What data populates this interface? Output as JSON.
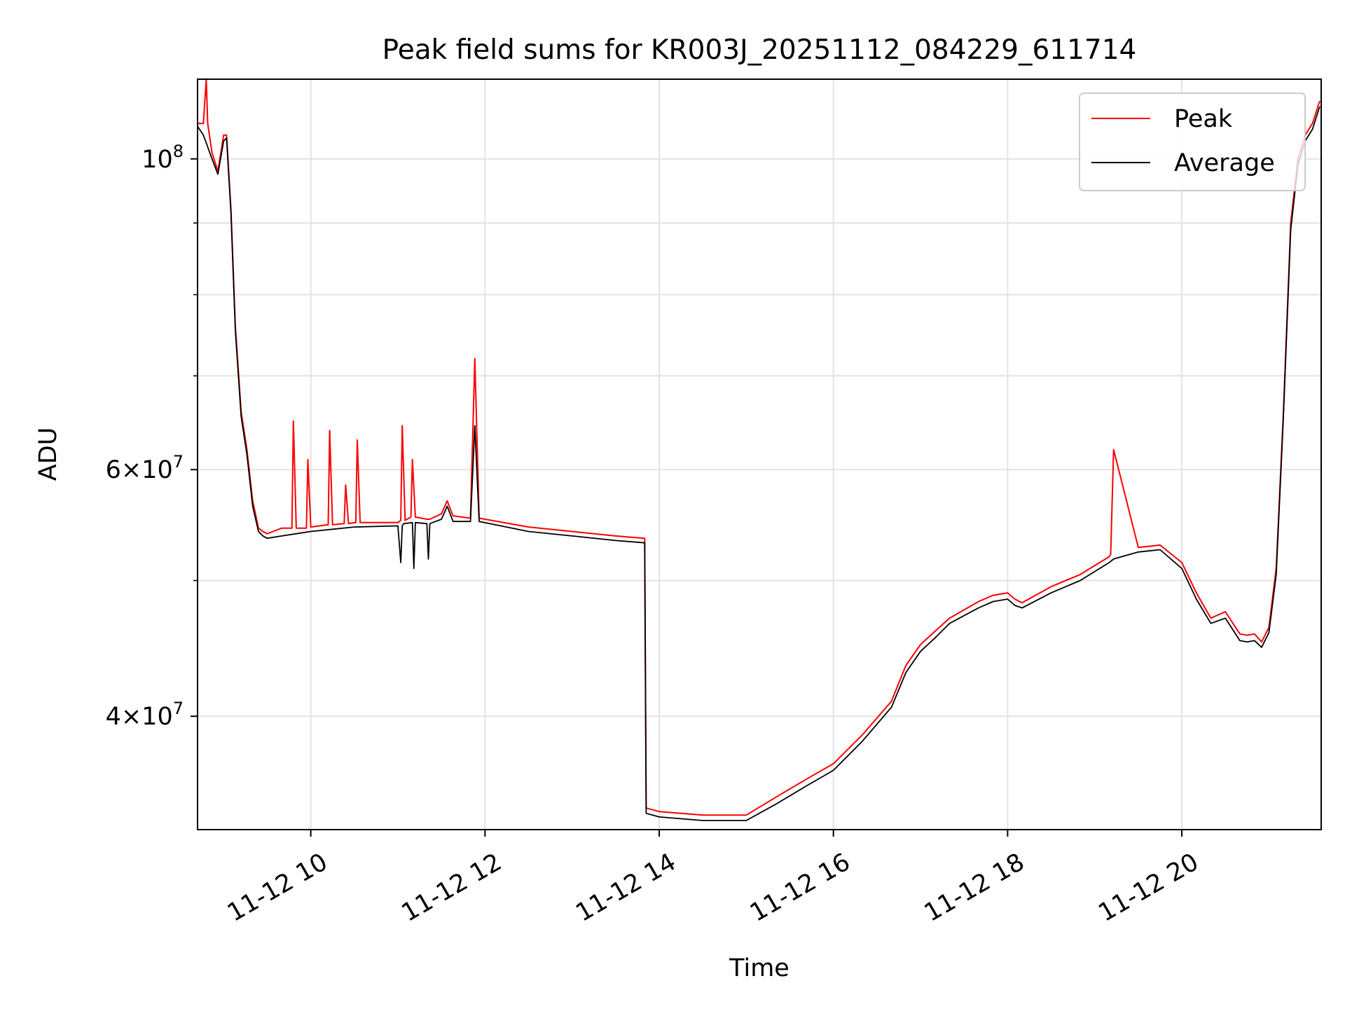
{
  "chart_data": {
    "type": "line",
    "title": "Peak field sums for KR003J_20251112_084229_611714",
    "xlabel": "Time",
    "ylabel": "ADU",
    "yscale": "log",
    "grid": true,
    "legend_position": "upper right",
    "xlim": [
      "2025-11-12 08:42",
      "2025-11-12 21:36"
    ],
    "ylim": [
      33200000,
      114000000
    ],
    "x_ticks": [
      "2025-11-12 10:00",
      "2025-11-12 12:00",
      "2025-11-12 14:00",
      "2025-11-12 16:00",
      "2025-11-12 18:00",
      "2025-11-12 20:00"
    ],
    "x_tick_labels": [
      "11-12 10",
      "11-12 12",
      "11-12 14",
      "11-12 16",
      "11-12 18",
      "11-12 20"
    ],
    "y_ticks": [
      40000000,
      60000000,
      100000000
    ],
    "y_tick_labels": [
      {
        "base": "4",
        "exp": "7"
      },
      {
        "base": "6",
        "exp": "7"
      },
      {
        "base": "10",
        "exp": "8"
      }
    ],
    "y_minor_ticks": [
      50000000,
      70000000,
      80000000,
      90000000
    ],
    "series": [
      {
        "name": "Peak",
        "color": "#ff0000",
        "x": [
          "2025-11-12 08:42",
          "2025-11-12 08:46",
          "2025-11-12 08:48",
          "2025-11-12 08:49",
          "2025-11-12 08:52",
          "2025-11-12 08:56",
          "2025-11-12 09:00",
          "2025-11-12 09:02",
          "2025-11-12 09:05",
          "2025-11-12 09:08",
          "2025-11-12 09:12",
          "2025-11-12 09:16",
          "2025-11-12 09:20",
          "2025-11-12 09:24",
          "2025-11-12 09:27",
          "2025-11-12 09:30",
          "2025-11-12 09:34",
          "2025-11-12 09:40",
          "2025-11-12 09:47",
          "2025-11-12 09:48",
          "2025-11-12 09:50",
          "2025-11-12 09:57",
          "2025-11-12 09:58",
          "2025-11-12 10:00",
          "2025-11-12 10:12",
          "2025-11-12 10:13",
          "2025-11-12 10:15",
          "2025-11-12 10:23",
          "2025-11-12 10:24",
          "2025-11-12 10:26",
          "2025-11-12 10:31",
          "2025-11-12 10:32",
          "2025-11-12 10:34",
          "2025-11-12 11:00",
          "2025-11-12 11:02",
          "2025-11-12 11:03",
          "2025-11-12 11:05",
          "2025-11-12 11:09",
          "2025-11-12 11:10",
          "2025-11-12 11:12",
          "2025-11-12 11:20",
          "2025-11-12 11:22",
          "2025-11-12 11:30",
          "2025-11-12 11:34",
          "2025-11-12 11:38",
          "2025-11-12 11:50",
          "2025-11-12 11:53",
          "2025-11-12 11:56",
          "2025-11-12 12:30",
          "2025-11-12 13:00",
          "2025-11-12 13:30",
          "2025-11-12 13:50",
          "2025-11-12 13:51",
          "2025-11-12 14:00",
          "2025-11-12 14:30",
          "2025-11-12 15:00",
          "2025-11-12 15:20",
          "2025-11-12 15:40",
          "2025-11-12 16:00",
          "2025-11-12 16:20",
          "2025-11-12 16:40",
          "2025-11-12 16:50",
          "2025-11-12 17:00",
          "2025-11-12 17:10",
          "2025-11-12 17:20",
          "2025-11-12 17:40",
          "2025-11-12 17:50",
          "2025-11-12 18:00",
          "2025-11-12 18:05",
          "2025-11-12 18:10",
          "2025-11-12 18:30",
          "2025-11-12 18:50",
          "2025-11-12 19:10",
          "2025-11-12 19:11",
          "2025-11-12 19:13",
          "2025-11-12 19:30",
          "2025-11-12 19:45",
          "2025-11-12 20:00",
          "2025-11-12 20:10",
          "2025-11-12 20:20",
          "2025-11-12 20:30",
          "2025-11-12 20:40",
          "2025-11-12 20:45",
          "2025-11-12 20:50",
          "2025-11-12 20:55",
          "2025-11-12 21:00",
          "2025-11-12 21:05",
          "2025-11-12 21:10",
          "2025-11-12 21:15",
          "2025-11-12 21:20",
          "2025-11-12 21:25",
          "2025-11-12 21:30",
          "2025-11-12 21:35"
        ],
        "y": [
          106000000,
          106000000,
          114000000,
          106000000,
          101000000,
          98000000,
          104000000,
          104000000,
          92000000,
          76000000,
          66000000,
          62000000,
          57000000,
          54500000,
          54200000,
          54000000,
          54200000,
          54500000,
          54500000,
          65000000,
          54500000,
          54500000,
          61000000,
          54600000,
          54800000,
          64000000,
          54800000,
          54900000,
          58500000,
          54900000,
          55000000,
          63000000,
          55000000,
          55000000,
          55200000,
          64500000,
          55200000,
          55500000,
          61000000,
          55500000,
          55300000,
          55300000,
          55800000,
          57000000,
          55600000,
          55400000,
          72000000,
          55400000,
          54600000,
          54200000,
          53800000,
          53600000,
          34400000,
          34200000,
          34000000,
          34000000,
          35000000,
          36000000,
          37000000,
          38800000,
          41000000,
          43500000,
          45000000,
          46000000,
          47000000,
          48300000,
          48800000,
          49000000,
          48500000,
          48200000,
          49500000,
          50500000,
          52000000,
          52200000,
          62000000,
          52800000,
          53000000,
          51500000,
          49000000,
          47000000,
          47500000,
          45800000,
          45700000,
          45800000,
          45200000,
          46300000,
          51000000,
          66000000,
          90000000,
          100000000,
          104000000,
          106000000,
          110000000
        ]
      },
      {
        "name": "Average",
        "color": "#000000",
        "x": [
          "2025-11-12 08:42",
          "2025-11-12 08:46",
          "2025-11-12 08:52",
          "2025-11-12 08:56",
          "2025-11-12 09:00",
          "2025-11-12 09:02",
          "2025-11-12 09:05",
          "2025-11-12 09:08",
          "2025-11-12 09:12",
          "2025-11-12 09:16",
          "2025-11-12 09:20",
          "2025-11-12 09:24",
          "2025-11-12 09:27",
          "2025-11-12 09:30",
          "2025-11-12 09:40",
          "2025-11-12 09:50",
          "2025-11-12 10:00",
          "2025-11-12 10:15",
          "2025-11-12 10:30",
          "2025-11-12 11:00",
          "2025-11-12 11:02",
          "2025-11-12 11:03",
          "2025-11-12 11:04",
          "2025-11-12 11:10",
          "2025-11-12 11:11",
          "2025-11-12 11:12",
          "2025-11-12 11:20",
          "2025-11-12 11:21",
          "2025-11-12 11:22",
          "2025-11-12 11:30",
          "2025-11-12 11:34",
          "2025-11-12 11:38",
          "2025-11-12 11:50",
          "2025-11-12 11:53",
          "2025-11-12 11:56",
          "2025-11-12 12:30",
          "2025-11-12 13:00",
          "2025-11-12 13:30",
          "2025-11-12 13:50",
          "2025-11-12 13:51",
          "2025-11-12 14:00",
          "2025-11-12 14:30",
          "2025-11-12 15:00",
          "2025-11-12 15:20",
          "2025-11-12 15:40",
          "2025-11-12 16:00",
          "2025-11-12 16:20",
          "2025-11-12 16:40",
          "2025-11-12 16:50",
          "2025-11-12 17:00",
          "2025-11-12 17:10",
          "2025-11-12 17:20",
          "2025-11-12 17:40",
          "2025-11-12 17:50",
          "2025-11-12 18:00",
          "2025-11-12 18:05",
          "2025-11-12 18:10",
          "2025-11-12 18:30",
          "2025-11-12 18:50",
          "2025-11-12 19:10",
          "2025-11-12 19:13",
          "2025-11-12 19:30",
          "2025-11-12 19:45",
          "2025-11-12 20:00",
          "2025-11-12 20:10",
          "2025-11-12 20:20",
          "2025-11-12 20:30",
          "2025-11-12 20:40",
          "2025-11-12 20:45",
          "2025-11-12 20:50",
          "2025-11-12 20:55",
          "2025-11-12 21:00",
          "2025-11-12 21:05",
          "2025-11-12 21:10",
          "2025-11-12 21:15",
          "2025-11-12 21:20",
          "2025-11-12 21:25",
          "2025-11-12 21:30",
          "2025-11-12 21:35"
        ],
        "y": [
          105500000,
          104000000,
          100000000,
          97500000,
          103000000,
          103500000,
          91500000,
          75500000,
          65500000,
          61500000,
          56500000,
          54200000,
          53800000,
          53600000,
          53800000,
          54000000,
          54200000,
          54400000,
          54600000,
          54700000,
          51500000,
          54700000,
          54900000,
          55000000,
          51000000,
          55000000,
          54900000,
          51800000,
          54900000,
          55300000,
          56500000,
          55100000,
          55100000,
          64500000,
          55100000,
          54200000,
          53800000,
          53400000,
          53200000,
          34100000,
          33900000,
          33700000,
          33700000,
          34600000,
          35600000,
          36600000,
          38400000,
          40600000,
          43000000,
          44500000,
          45500000,
          46600000,
          47800000,
          48300000,
          48500000,
          48000000,
          47800000,
          49000000,
          50000000,
          51500000,
          51800000,
          52400000,
          52600000,
          51000000,
          48500000,
          46600000,
          47000000,
          45300000,
          45200000,
          45300000,
          44800000,
          45900000,
          50500000,
          65500000,
          89000000,
          99000000,
          103000000,
          105000000,
          109000000
        ]
      }
    ]
  }
}
